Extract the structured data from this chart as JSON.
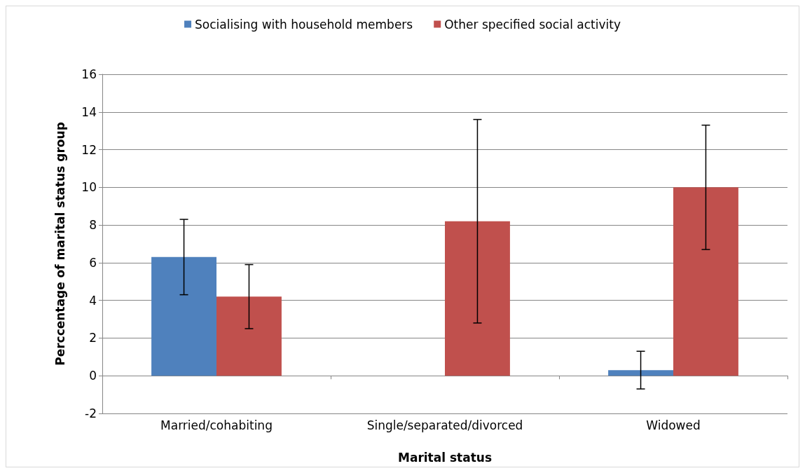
{
  "chart_data": {
    "type": "bar",
    "xlabel": "Marital status",
    "ylabel": "Perccentage of marital status group",
    "categories": [
      "Married/cohabiting",
      "Single/separated/divorced",
      "Widowed"
    ],
    "series": [
      {
        "name": "Socialising with household members",
        "color": "#4f81bd",
        "values": [
          6.3,
          0,
          0.3
        ],
        "errors": [
          2.0,
          null,
          1.0
        ]
      },
      {
        "name": "Other specified social activity",
        "color": "#c0504d",
        "values": [
          4.2,
          8.2,
          10.0
        ],
        "errors": [
          1.7,
          5.4,
          3.3
        ]
      }
    ],
    "ylim": [
      -2,
      16
    ],
    "yticks": [
      -2,
      0,
      2,
      4,
      6,
      8,
      10,
      12,
      14,
      16
    ],
    "grid": "y",
    "legend": "top"
  }
}
